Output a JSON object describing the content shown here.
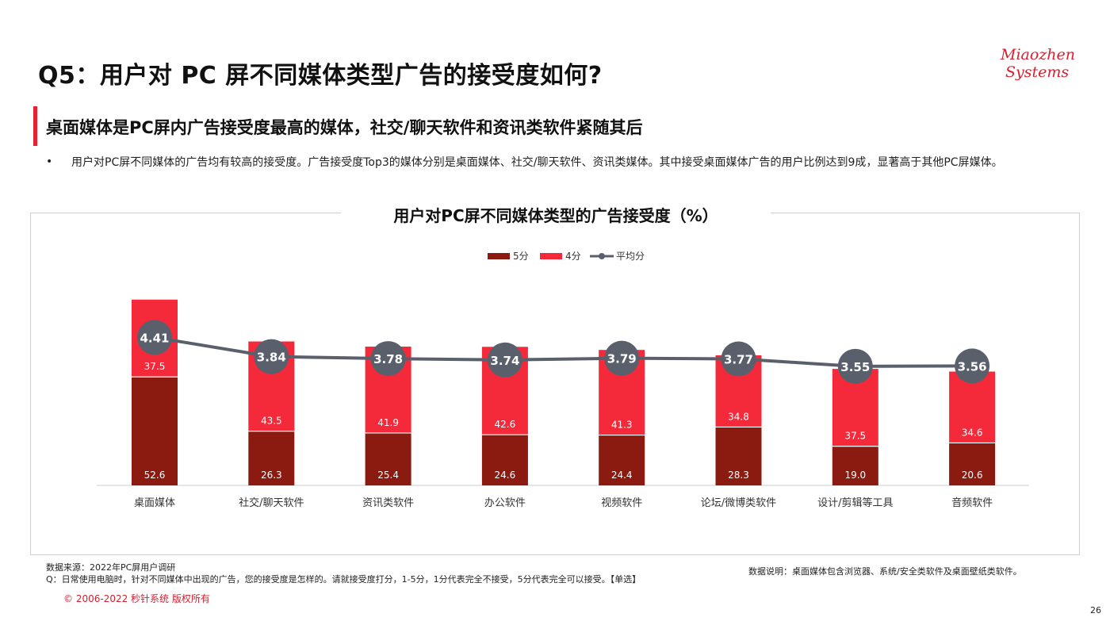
{
  "page": {
    "title": "Q5：用户对 PC 屏不同媒体类型广告的接受度如何?",
    "logo_line1": "Miaozhen",
    "logo_line2": "Systems",
    "subtitle": "桌面媒体是PC屏内广告接受度最高的媒体，社交/聊天软件和资讯类软件紧随其后",
    "bullet_marker": "•",
    "bullet": "用户对PC屏不同媒体的广告均有较高的接受度。广告接受度Top3的媒体分别是桌面媒体、社交/聊天软件、资讯类媒体。其中接受桌面媒体广告的用户比例达到9成，显著高于其他PC屏媒体。",
    "source_line1": "数据来源：2022年PC屏用户调研",
    "source_line2": "Q：日常使用电脑时，针对不同媒体中出现的广告，您的接受度是怎样的。请就接受度打分，1-5分，1分代表完全不接受，5分代表完全可以接受。【单选】",
    "note": "数据说明：桌面媒体包含浏览器、系统/安全类软件及桌面壁纸类软件。",
    "copyright": "© 2006-2022 秒针系统 版权所有",
    "page_number": "26"
  },
  "chart_data": {
    "type": "bar",
    "stacked": true,
    "title": "用户对PC屏不同媒体类型的广告接受度（%）",
    "categories": [
      "桌面媒体",
      "社交/聊天软件",
      "资讯类软件",
      "办公软件",
      "视频软件",
      "论坛/微博类软件",
      "设计/剪辑等工具",
      "音频软件"
    ],
    "series": [
      {
        "name": "5分",
        "values": [
          52.6,
          26.3,
          25.4,
          24.6,
          24.4,
          28.3,
          19.0,
          20.6
        ],
        "labels": [
          "52.6",
          "26.3",
          "25.4",
          "24.6",
          "24.4",
          "28.3",
          "19.0",
          "20.6"
        ],
        "color": "#8b1a10"
      },
      {
        "name": "4分",
        "values": [
          37.5,
          43.5,
          41.9,
          42.6,
          41.3,
          34.8,
          37.5,
          34.6
        ],
        "labels": [
          "37.5",
          "43.5",
          "41.9",
          "42.6",
          "41.3",
          "34.8",
          "37.5",
          "34.6"
        ],
        "color": "#f42a3b"
      }
    ],
    "line_series": {
      "name": "平均分",
      "values": [
        4.41,
        3.84,
        3.78,
        3.74,
        3.79,
        3.77,
        3.55,
        3.56
      ],
      "labels": [
        "4.41",
        "3.84",
        "3.78",
        "3.74",
        "3.79",
        "3.77",
        "3.55",
        "3.56"
      ],
      "color": "#5a606b",
      "ylim": [
        0,
        7.5
      ]
    },
    "ylim": [
      0,
      100
    ],
    "legend_position": "top-center",
    "grid": false
  }
}
